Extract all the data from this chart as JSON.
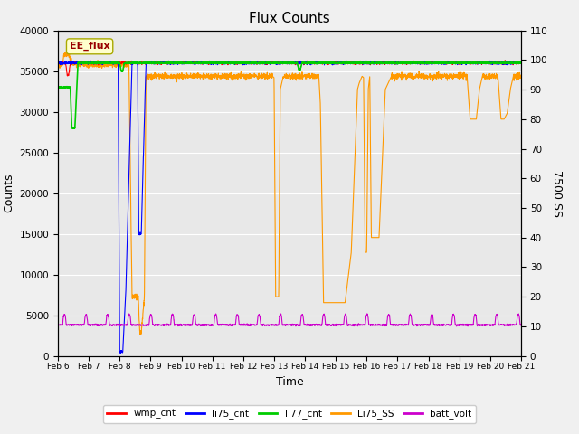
{
  "title": "Flux Counts",
  "xlabel": "Time",
  "ylabel_left": "Counts",
  "ylabel_right": "7500 SS",
  "annotation": "EE_flux",
  "ylim_left": [
    0,
    40000
  ],
  "ylim_right": [
    0,
    110
  ],
  "x_tick_labels": [
    "Feb 6",
    "Feb 7",
    "Feb 8",
    "Feb 9",
    "Feb 10",
    "Feb 11",
    "Feb 12",
    "Feb 13",
    "Feb 14",
    "Feb 15",
    "Feb 16",
    "Feb 17",
    "Feb 18",
    "Feb 19",
    "Feb 20",
    "Feb 21"
  ],
  "right_yticks": [
    0,
    10,
    20,
    30,
    40,
    50,
    60,
    70,
    80,
    90,
    100,
    110
  ],
  "left_yticks": [
    0,
    5000,
    10000,
    15000,
    20000,
    25000,
    30000,
    35000,
    40000
  ],
  "colors": {
    "wmp_cnt": "#ff0000",
    "li75_cnt": "#0000ff",
    "li77_cnt": "#00cc00",
    "Li75_SS": "#ff9900",
    "batt_volt": "#cc00cc"
  },
  "bg_color": "#e8e8e8",
  "fig_bg": "#f0f0f0",
  "legend_labels": [
    "wmp_cnt",
    "li75_cnt",
    "li77_cnt",
    "Li75_SS",
    "batt_volt"
  ]
}
